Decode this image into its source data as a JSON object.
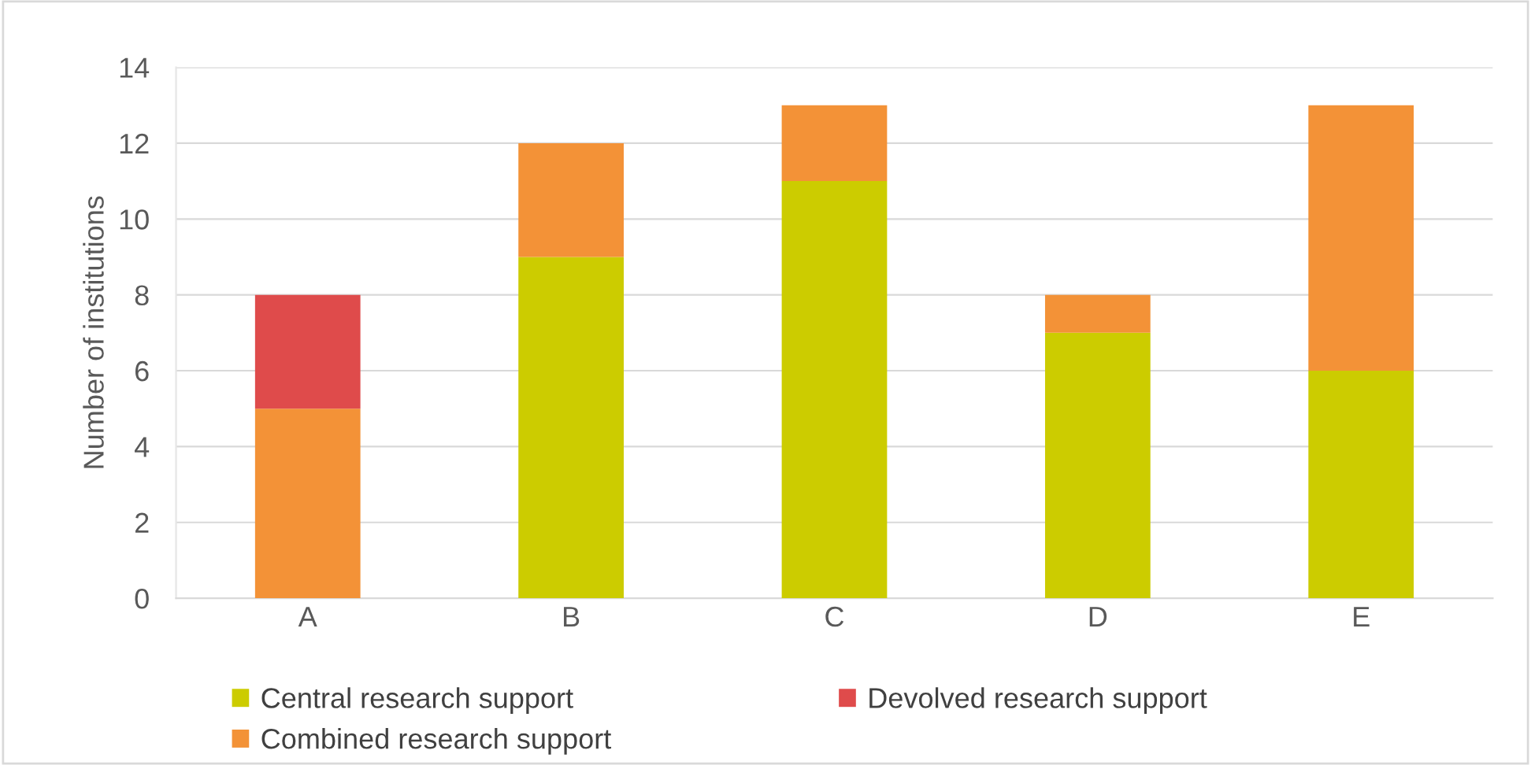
{
  "chart_data": {
    "type": "bar",
    "stacked": true,
    "categories": [
      "A",
      "B",
      "C",
      "D",
      "E"
    ],
    "series": [
      {
        "name": "Central research support",
        "color": "#cccc00",
        "values": [
          0,
          9,
          11,
          7,
          6
        ]
      },
      {
        "name": "Combined research support",
        "color": "#f39237",
        "values": [
          5,
          3,
          2,
          1,
          7
        ]
      },
      {
        "name": "Devolved research support",
        "color": "#df4b4b",
        "values": [
          3,
          0,
          0,
          0,
          0
        ]
      }
    ],
    "ylabel": "Number of institutions",
    "ylim": [
      0,
      14
    ],
    "yticks": [
      0,
      2,
      4,
      6,
      8,
      10,
      12,
      14
    ],
    "grid": "y",
    "legend": "bottom"
  }
}
